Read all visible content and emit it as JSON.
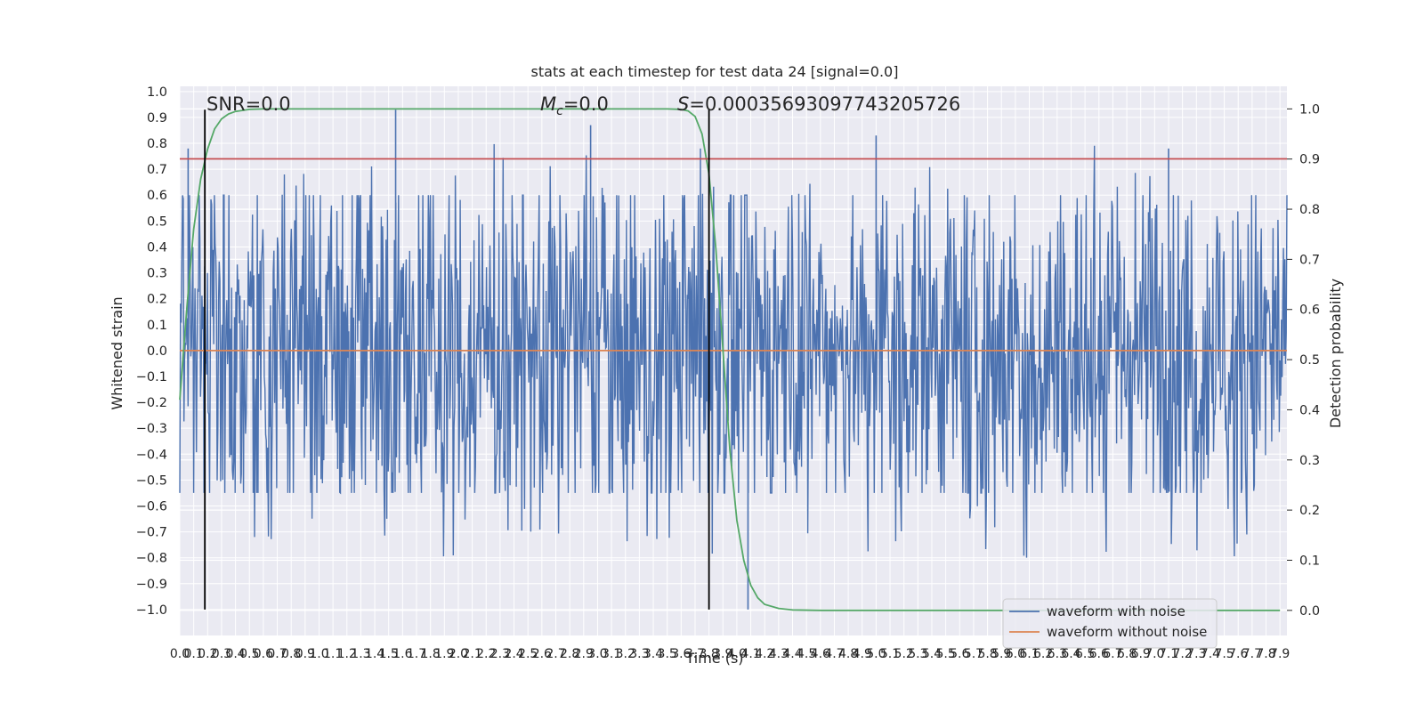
{
  "chart_data": {
    "type": "line",
    "title": "stats at each timestep for test data 24 [signal=0.0]",
    "xlabel": "Time (s)",
    "ylabel": "Whitened strain",
    "ylabel_right": "Detection probability",
    "xlim": [
      0.0,
      7.95
    ],
    "ylim": [
      -1.1,
      1.02
    ],
    "ylim_right": [
      -0.05,
      1.045
    ],
    "x_ticks": [
      "0.0",
      "0.1",
      "0.2",
      "0.3",
      "0.4",
      "0.5",
      "0.6",
      "0.7",
      "0.8",
      "0.9",
      "1.0",
      "1.1",
      "1.2",
      "1.3",
      "1.4",
      "1.5",
      "1.6",
      "1.7",
      "1.8",
      "1.9",
      "2.0",
      "2.1",
      "2.2",
      "2.3",
      "2.4",
      "2.5",
      "2.6",
      "2.7",
      "2.8",
      "2.9",
      "3.0",
      "3.1",
      "3.2",
      "3.3",
      "3.4",
      "3.5",
      "3.6",
      "3.7",
      "3.8",
      "3.9",
      "4.0",
      "4.1",
      "4.2",
      "4.3",
      "4.4",
      "4.5",
      "4.6",
      "4.7",
      "4.8",
      "4.9",
      "5.0",
      "5.1",
      "5.2",
      "5.3",
      "5.4",
      "5.5",
      "5.6",
      "5.7",
      "5.8",
      "5.9",
      "6.0",
      "6.1",
      "6.2",
      "6.3",
      "6.4",
      "6.5",
      "6.6",
      "6.7",
      "6.8",
      "6.9",
      "7.0",
      "7.1",
      "7.2",
      "7.3",
      "7.4",
      "7.5",
      "7.6",
      "7.7",
      "7.8",
      "7.9"
    ],
    "y_ticks": [
      "1.0",
      "0.9",
      "0.8",
      "0.7",
      "0.6",
      "0.5",
      "0.4",
      "0.3",
      "0.2",
      "0.1",
      "0.0",
      "−0.1",
      "−0.2",
      "−0.3",
      "−0.4",
      "−0.5",
      "−0.6",
      "−0.7",
      "−0.8",
      "−0.9",
      "−1.0"
    ],
    "y_ticks_right": [
      "1.0",
      "0.9",
      "0.8",
      "0.7",
      "0.6",
      "0.5",
      "0.4",
      "0.3",
      "0.2",
      "0.1",
      "0.0"
    ],
    "grid": true,
    "legend_position": "bottom-right",
    "series": [
      {
        "name": "waveform with noise",
        "color": "#4c72b0",
        "axis": "left",
        "note": "dense white-noise trace",
        "typical_range": [
          -0.55,
          0.6
        ],
        "extremes": {
          "max": 0.93,
          "min": -1.0
        },
        "peaks": [
          [
            0.06,
            0.78
          ],
          [
            1.55,
            0.93
          ],
          [
            2.95,
            0.87
          ],
          [
            4.08,
            -1.0
          ],
          [
            5.0,
            0.83
          ],
          [
            7.1,
            0.78
          ]
        ]
      },
      {
        "name": "waveform without noise",
        "color": "#dd8452",
        "axis": "left",
        "x": [
          0.0,
          7.95
        ],
        "y": [
          0.0,
          0.0
        ]
      },
      {
        "color": "#55a868",
        "axis": "right",
        "x": [
          0.0,
          0.05,
          0.1,
          0.15,
          0.2,
          0.25,
          0.3,
          0.35,
          0.4,
          0.5,
          0.6,
          0.8,
          1.0,
          3.5,
          3.6,
          3.65,
          3.7,
          3.75,
          3.8,
          3.85,
          3.9,
          3.95,
          4.0,
          4.05,
          4.1,
          4.15,
          4.2,
          4.3,
          4.4,
          4.6,
          5.0,
          7.9
        ],
        "y": [
          0.42,
          0.6,
          0.76,
          0.86,
          0.92,
          0.96,
          0.98,
          0.99,
          0.995,
          0.999,
          1.0,
          1.0,
          1.0,
          1.0,
          0.999,
          0.996,
          0.985,
          0.95,
          0.87,
          0.72,
          0.52,
          0.32,
          0.18,
          0.1,
          0.05,
          0.025,
          0.012,
          0.004,
          0.001,
          0.0,
          0.0,
          0.0
        ]
      },
      {
        "color": "#c44e52",
        "axis": "left",
        "x": [
          0.0,
          7.95
        ],
        "y": [
          0.74,
          0.74
        ]
      }
    ],
    "vlines": [
      {
        "x": 0.18,
        "ymin": -1.0,
        "ymax": 0.93,
        "color": "#000000"
      },
      {
        "x": 3.8,
        "ymin": -1.0,
        "ymax": 0.93,
        "color": "#000000"
      }
    ],
    "annotations": [
      {
        "x": 0.19,
        "y": 0.94,
        "text": "SNR=0.0"
      },
      {
        "x": 2.6,
        "y": 0.94,
        "label": "M",
        "subscript": "c",
        "value": "=0.0"
      },
      {
        "x": 3.6,
        "y": 0.94,
        "label": "S",
        "value": "=0.00035693097743205726"
      }
    ]
  }
}
